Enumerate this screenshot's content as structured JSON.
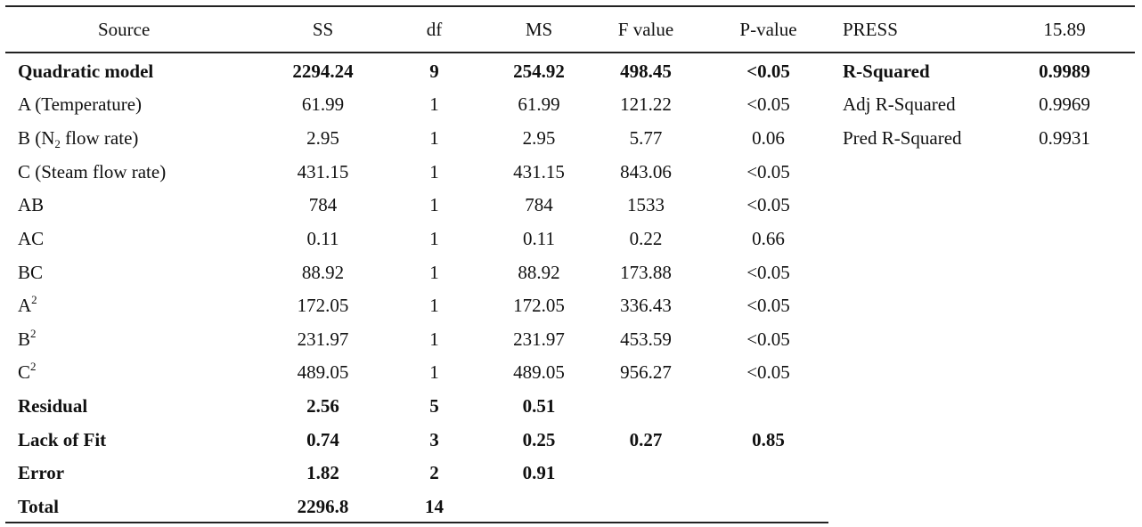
{
  "table": {
    "headers": {
      "source": "Source",
      "ss": "SS",
      "df": "df",
      "ms": "MS",
      "f": "F value",
      "p": "P-value"
    },
    "rows": [
      {
        "source": "Quadratic model",
        "ss": "2294.24",
        "df": "9",
        "ms": "254.92",
        "f": "498.45",
        "p": "<0.05"
      },
      {
        "source": "A (Temperature)",
        "ss": "61.99",
        "df": "1",
        "ms": "61.99",
        "f": "121.22",
        "p": "<0.05"
      },
      {
        "source_pre": "B (N",
        "source_sub": "2",
        "source_post": " flow rate)",
        "ss": "2.95",
        "df": "1",
        "ms": "2.95",
        "f": "5.77",
        "p": "0.06"
      },
      {
        "source": "C (Steam flow rate)",
        "ss": "431.15",
        "df": "1",
        "ms": "431.15",
        "f": "843.06",
        "p": "<0.05"
      },
      {
        "source": "AB",
        "ss": "784",
        "df": "1",
        "ms": "784",
        "f": "1533",
        "p": "<0.05"
      },
      {
        "source": "AC",
        "ss": "0.11",
        "df": "1",
        "ms": "0.11",
        "f": "0.22",
        "p": "0.66"
      },
      {
        "source": "BC",
        "ss": "88.92",
        "df": "1",
        "ms": "88.92",
        "f": "173.88",
        "p": "<0.05"
      },
      {
        "source_base": "A",
        "source_sup": "2",
        "ss": "172.05",
        "df": "1",
        "ms": "172.05",
        "f": "336.43",
        "p": "<0.05"
      },
      {
        "source_base": "B",
        "source_sup": "2",
        "ss": "231.97",
        "df": "1",
        "ms": "231.97",
        "f": "453.59",
        "p": "<0.05"
      },
      {
        "source_base": "C",
        "source_sup": "2",
        "ss": "489.05",
        "df": "1",
        "ms": "489.05",
        "f": "956.27",
        "p": "<0.05"
      },
      {
        "source": "Residual",
        "ss": "2.56",
        "df": "5",
        "ms": "0.51",
        "f": "",
        "p": ""
      },
      {
        "source": "Lack of Fit",
        "ss": "0.74",
        "df": "3",
        "ms": "0.25",
        "f": "0.27",
        "p": "0.85"
      },
      {
        "source": "Error",
        "ss": "1.82",
        "df": "2",
        "ms": "0.91",
        "f": "",
        "p": ""
      },
      {
        "source": "Total",
        "ss": "2296.8",
        "df": "14",
        "ms": "",
        "f": "",
        "p": ""
      }
    ]
  },
  "stats": [
    {
      "label": "PRESS",
      "value": "15.89"
    },
    {
      "label": "R-Squared",
      "value": "0.9989"
    },
    {
      "label": "Adj R-Squared",
      "value": "0.9969"
    },
    {
      "label": "Pred R-Squared",
      "value": "0.9931"
    }
  ]
}
